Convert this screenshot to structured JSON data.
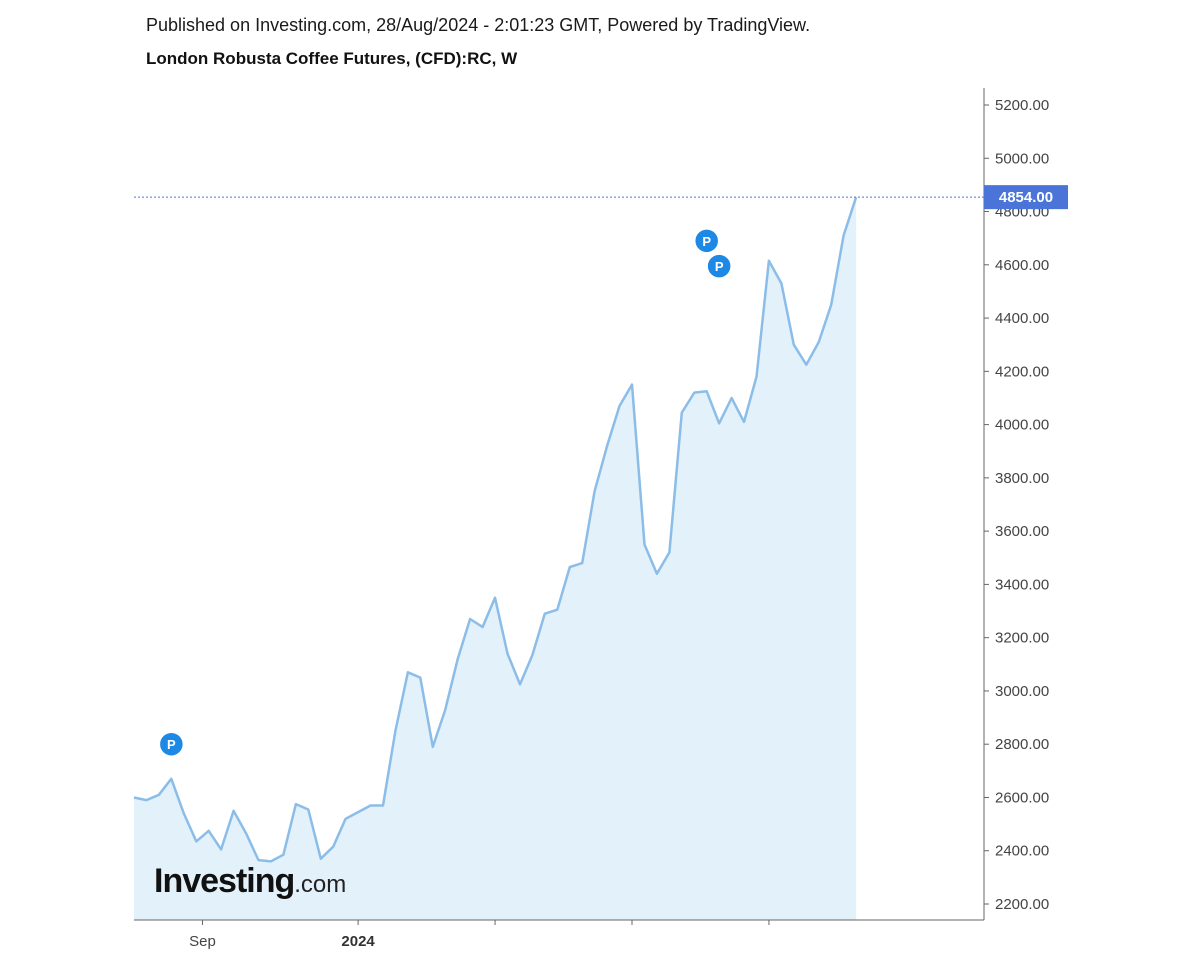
{
  "header": {
    "published": "Published on Investing.com, 28/Aug/2024 - 2:01:23 GMT, Powered by TradingView.",
    "title": "London Robusta Coffee Futures, (CFD):RC, W"
  },
  "logo": {
    "main": "Investing",
    "suffix": ".com"
  },
  "colors": {
    "line": "#8bbde8",
    "fill": "#e3f1fa",
    "axis": "#666666",
    "price_label_bg": "#4a74d8",
    "marker": "#1e88e5",
    "dotted_line": "#4a74d8"
  },
  "chart_data": {
    "type": "area",
    "title": "London Robusta Coffee Futures, (CFD):RC, W",
    "interval": "W",
    "ylim": [
      2150,
      5270
    ],
    "y_ticks": [
      "2200.00",
      "2400.00",
      "2600.00",
      "2800.00",
      "3000.00",
      "3200.00",
      "3400.00",
      "3600.00",
      "3800.00",
      "4000.00",
      "4200.00",
      "4400.00",
      "4600.00",
      "4800.00",
      "5000.00",
      "5200.00"
    ],
    "x_ticks": [
      {
        "label": "Sep",
        "index": 5.5,
        "bold": false
      },
      {
        "label": "2024",
        "index": 18,
        "bold": true
      },
      {
        "label": "",
        "index": 29,
        "bold": false
      },
      {
        "label": "",
        "index": 40,
        "bold": false
      },
      {
        "label": "",
        "index": 51,
        "bold": false
      }
    ],
    "last_price": "4854.00",
    "series": [
      {
        "values": [
          2600,
          2590,
          2610,
          2670,
          2540,
          2435,
          2475,
          2405,
          2550,
          2465,
          2365,
          2360,
          2385,
          2575,
          2555,
          2370,
          2415,
          2520,
          2545,
          2570,
          2570,
          2850,
          3070,
          3050,
          2790,
          2930,
          3120,
          3270,
          3240,
          3350,
          3140,
          3025,
          3135,
          3290,
          3305,
          3465,
          3480,
          3750,
          3920,
          4070,
          4150,
          3550,
          3440,
          3520,
          4045,
          4120,
          4125,
          4005,
          4100,
          4010,
          4180,
          4615,
          4530,
          4300,
          4225,
          4310,
          4450,
          4710,
          4854
        ]
      }
    ],
    "markers": [
      {
        "label": "P",
        "index": 3,
        "value": 2800
      },
      {
        "label": "P",
        "index": 46,
        "value": 4690
      },
      {
        "label": "P",
        "index": 47,
        "value": 4595
      }
    ]
  }
}
